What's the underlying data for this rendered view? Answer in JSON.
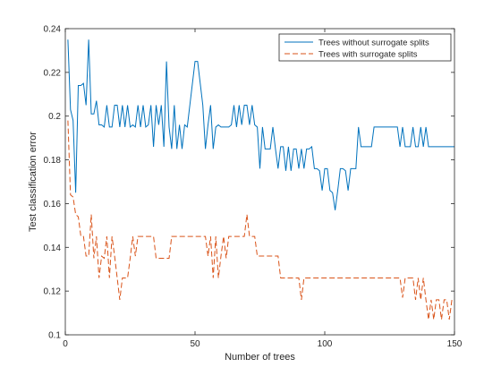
{
  "chart_data": {
    "type": "line",
    "xlabel": "Number of trees",
    "ylabel": "Test classification error",
    "xlim": [
      0,
      150
    ],
    "ylim": [
      0.1,
      0.24
    ],
    "xticks": [
      0,
      50,
      100,
      150
    ],
    "yticks": [
      0.1,
      0.12,
      0.14,
      0.16,
      0.18,
      0.2,
      0.22,
      0.24
    ],
    "ytick_labels": [
      "0.1",
      "0.12",
      "0.14",
      "0.16",
      "0.18",
      "0.2",
      "0.22",
      "0.24"
    ],
    "grid": false,
    "legend_position": "top-right",
    "series": [
      {
        "name": "Trees without surrogate splits",
        "color": "#0072BD",
        "dash": "solid",
        "points": [
          [
            1,
            0.235
          ],
          [
            2,
            0.203
          ],
          [
            3,
            0.198
          ],
          [
            4,
            0.165
          ],
          [
            5,
            0.214
          ],
          [
            6,
            0.214
          ],
          [
            7,
            0.215
          ],
          [
            8,
            0.205
          ],
          [
            9,
            0.235
          ],
          [
            10,
            0.201
          ],
          [
            11,
            0.201
          ],
          [
            12,
            0.207
          ],
          [
            13,
            0.196
          ],
          [
            14,
            0.196
          ],
          [
            15,
            0.195
          ],
          [
            16,
            0.205
          ],
          [
            17,
            0.195
          ],
          [
            18,
            0.195
          ],
          [
            19,
            0.205
          ],
          [
            20,
            0.205
          ],
          [
            21,
            0.195
          ],
          [
            22,
            0.205
          ],
          [
            23,
            0.195
          ],
          [
            24,
            0.205
          ],
          [
            25,
            0.195
          ],
          [
            26,
            0.196
          ],
          [
            27,
            0.195
          ],
          [
            28,
            0.205
          ],
          [
            29,
            0.195
          ],
          [
            30,
            0.205
          ],
          [
            31,
            0.195
          ],
          [
            32,
            0.196
          ],
          [
            33,
            0.205
          ],
          [
            34,
            0.186
          ],
          [
            35,
            0.205
          ],
          [
            36,
            0.196
          ],
          [
            37,
            0.205
          ],
          [
            38,
            0.186
          ],
          [
            39,
            0.225
          ],
          [
            40,
            0.195
          ],
          [
            41,
            0.185
          ],
          [
            42,
            0.205
          ],
          [
            43,
            0.185
          ],
          [
            44,
            0.196
          ],
          [
            45,
            0.185
          ],
          [
            46,
            0.196
          ],
          [
            47,
            0.195
          ],
          [
            48,
            0.205
          ],
          [
            49,
            0.215
          ],
          [
            50,
            0.225
          ],
          [
            51,
            0.225
          ],
          [
            52,
            0.215
          ],
          [
            53,
            0.205
          ],
          [
            54,
            0.185
          ],
          [
            55,
            0.196
          ],
          [
            56,
            0.205
          ],
          [
            57,
            0.185
          ],
          [
            58,
            0.195
          ],
          [
            59,
            0.196
          ],
          [
            60,
            0.195
          ],
          [
            61,
            0.195
          ],
          [
            62,
            0.195
          ],
          [
            63,
            0.195
          ],
          [
            64,
            0.196
          ],
          [
            65,
            0.205
          ],
          [
            66,
            0.195
          ],
          [
            67,
            0.205
          ],
          [
            68,
            0.196
          ],
          [
            69,
            0.205
          ],
          [
            70,
            0.205
          ],
          [
            71,
            0.196
          ],
          [
            72,
            0.205
          ],
          [
            73,
            0.196
          ],
          [
            74,
            0.195
          ],
          [
            75,
            0.176
          ],
          [
            76,
            0.195
          ],
          [
            77,
            0.185
          ],
          [
            78,
            0.185
          ],
          [
            79,
            0.185
          ],
          [
            80,
            0.195
          ],
          [
            81,
            0.185
          ],
          [
            82,
            0.176
          ],
          [
            83,
            0.186
          ],
          [
            84,
            0.186
          ],
          [
            85,
            0.175
          ],
          [
            86,
            0.186
          ],
          [
            87,
            0.175
          ],
          [
            88,
            0.185
          ],
          [
            89,
            0.185
          ],
          [
            90,
            0.176
          ],
          [
            91,
            0.185
          ],
          [
            92,
            0.176
          ],
          [
            93,
            0.185
          ],
          [
            94,
            0.185
          ],
          [
            95,
            0.186
          ],
          [
            96,
            0.176
          ],
          [
            97,
            0.176
          ],
          [
            98,
            0.175
          ],
          [
            99,
            0.166
          ],
          [
            100,
            0.176
          ],
          [
            101,
            0.176
          ],
          [
            102,
            0.166
          ],
          [
            103,
            0.165
          ],
          [
            104,
            0.157
          ],
          [
            105,
            0.166
          ],
          [
            106,
            0.176
          ],
          [
            107,
            0.176
          ],
          [
            108,
            0.175
          ],
          [
            109,
            0.166
          ],
          [
            110,
            0.176
          ],
          [
            111,
            0.176
          ],
          [
            112,
            0.176
          ],
          [
            113,
            0.195
          ],
          [
            114,
            0.186
          ],
          [
            115,
            0.186
          ],
          [
            116,
            0.186
          ],
          [
            117,
            0.186
          ],
          [
            118,
            0.186
          ],
          [
            119,
            0.195
          ],
          [
            120,
            0.195
          ],
          [
            121,
            0.195
          ],
          [
            122,
            0.195
          ],
          [
            123,
            0.195
          ],
          [
            124,
            0.195
          ],
          [
            125,
            0.195
          ],
          [
            126,
            0.195
          ],
          [
            127,
            0.195
          ],
          [
            128,
            0.195
          ],
          [
            129,
            0.186
          ],
          [
            130,
            0.195
          ],
          [
            131,
            0.186
          ],
          [
            132,
            0.186
          ],
          [
            133,
            0.186
          ],
          [
            134,
            0.195
          ],
          [
            135,
            0.186
          ],
          [
            136,
            0.186
          ],
          [
            137,
            0.195
          ],
          [
            138,
            0.186
          ],
          [
            139,
            0.195
          ],
          [
            140,
            0.186
          ],
          [
            141,
            0.186
          ],
          [
            142,
            0.186
          ],
          [
            143,
            0.186
          ],
          [
            144,
            0.186
          ],
          [
            145,
            0.186
          ],
          [
            146,
            0.186
          ],
          [
            147,
            0.186
          ],
          [
            148,
            0.186
          ],
          [
            149,
            0.186
          ],
          [
            150,
            0.186
          ]
        ]
      },
      {
        "name": "Trees with surrogate splits",
        "color": "#D95319",
        "dash": "dashed",
        "points": [
          [
            1,
            0.198
          ],
          [
            2,
            0.164
          ],
          [
            3,
            0.163
          ],
          [
            4,
            0.155
          ],
          [
            5,
            0.154
          ],
          [
            6,
            0.145
          ],
          [
            7,
            0.145
          ],
          [
            8,
            0.136
          ],
          [
            9,
            0.136
          ],
          [
            10,
            0.155
          ],
          [
            11,
            0.135
          ],
          [
            12,
            0.145
          ],
          [
            13,
            0.126
          ],
          [
            14,
            0.136
          ],
          [
            15,
            0.135
          ],
          [
            16,
            0.145
          ],
          [
            17,
            0.126
          ],
          [
            18,
            0.145
          ],
          [
            19,
            0.136
          ],
          [
            20,
            0.126
          ],
          [
            21,
            0.116
          ],
          [
            22,
            0.126
          ],
          [
            23,
            0.126
          ],
          [
            24,
            0.126
          ],
          [
            25,
            0.135
          ],
          [
            26,
            0.145
          ],
          [
            27,
            0.136
          ],
          [
            28,
            0.145
          ],
          [
            29,
            0.145
          ],
          [
            30,
            0.145
          ],
          [
            31,
            0.145
          ],
          [
            32,
            0.145
          ],
          [
            33,
            0.145
          ],
          [
            34,
            0.145
          ],
          [
            35,
            0.135
          ],
          [
            36,
            0.135
          ],
          [
            37,
            0.135
          ],
          [
            38,
            0.135
          ],
          [
            39,
            0.135
          ],
          [
            40,
            0.135
          ],
          [
            41,
            0.145
          ],
          [
            42,
            0.145
          ],
          [
            43,
            0.145
          ],
          [
            44,
            0.145
          ],
          [
            45,
            0.145
          ],
          [
            46,
            0.145
          ],
          [
            47,
            0.145
          ],
          [
            48,
            0.145
          ],
          [
            49,
            0.145
          ],
          [
            50,
            0.145
          ],
          [
            51,
            0.145
          ],
          [
            52,
            0.145
          ],
          [
            53,
            0.145
          ],
          [
            54,
            0.145
          ],
          [
            55,
            0.136
          ],
          [
            56,
            0.145
          ],
          [
            57,
            0.126
          ],
          [
            58,
            0.145
          ],
          [
            59,
            0.126
          ],
          [
            60,
            0.136
          ],
          [
            61,
            0.145
          ],
          [
            62,
            0.135
          ],
          [
            63,
            0.145
          ],
          [
            64,
            0.145
          ],
          [
            65,
            0.145
          ],
          [
            66,
            0.145
          ],
          [
            67,
            0.145
          ],
          [
            68,
            0.145
          ],
          [
            69,
            0.145
          ],
          [
            70,
            0.155
          ],
          [
            71,
            0.145
          ],
          [
            72,
            0.145
          ],
          [
            73,
            0.145
          ],
          [
            74,
            0.136
          ],
          [
            75,
            0.136
          ],
          [
            76,
            0.136
          ],
          [
            77,
            0.136
          ],
          [
            78,
            0.136
          ],
          [
            79,
            0.136
          ],
          [
            80,
            0.136
          ],
          [
            81,
            0.136
          ],
          [
            82,
            0.136
          ],
          [
            83,
            0.126
          ],
          [
            84,
            0.126
          ],
          [
            85,
            0.126
          ],
          [
            86,
            0.126
          ],
          [
            87,
            0.126
          ],
          [
            88,
            0.126
          ],
          [
            89,
            0.126
          ],
          [
            90,
            0.126
          ],
          [
            91,
            0.116
          ],
          [
            92,
            0.126
          ],
          [
            93,
            0.126
          ],
          [
            94,
            0.126
          ],
          [
            95,
            0.126
          ],
          [
            96,
            0.126
          ],
          [
            97,
            0.126
          ],
          [
            98,
            0.126
          ],
          [
            99,
            0.126
          ],
          [
            100,
            0.126
          ],
          [
            101,
            0.126
          ],
          [
            102,
            0.126
          ],
          [
            103,
            0.126
          ],
          [
            104,
            0.126
          ],
          [
            105,
            0.126
          ],
          [
            106,
            0.126
          ],
          [
            107,
            0.126
          ],
          [
            108,
            0.126
          ],
          [
            109,
            0.126
          ],
          [
            110,
            0.126
          ],
          [
            111,
            0.126
          ],
          [
            112,
            0.126
          ],
          [
            113,
            0.126
          ],
          [
            114,
            0.126
          ],
          [
            115,
            0.126
          ],
          [
            116,
            0.126
          ],
          [
            117,
            0.126
          ],
          [
            118,
            0.126
          ],
          [
            119,
            0.126
          ],
          [
            120,
            0.126
          ],
          [
            121,
            0.126
          ],
          [
            122,
            0.126
          ],
          [
            123,
            0.126
          ],
          [
            124,
            0.126
          ],
          [
            125,
            0.126
          ],
          [
            126,
            0.126
          ],
          [
            127,
            0.126
          ],
          [
            128,
            0.126
          ],
          [
            129,
            0.126
          ],
          [
            130,
            0.117
          ],
          [
            131,
            0.126
          ],
          [
            132,
            0.126
          ],
          [
            133,
            0.126
          ],
          [
            134,
            0.126
          ],
          [
            135,
            0.116
          ],
          [
            136,
            0.126
          ],
          [
            137,
            0.116
          ],
          [
            138,
            0.126
          ],
          [
            139,
            0.116
          ],
          [
            140,
            0.107
          ],
          [
            141,
            0.116
          ],
          [
            142,
            0.107
          ],
          [
            143,
            0.116
          ],
          [
            144,
            0.116
          ],
          [
            145,
            0.107
          ],
          [
            146,
            0.116
          ],
          [
            147,
            0.116
          ],
          [
            148,
            0.107
          ],
          [
            149,
            0.116
          ],
          [
            150,
            0.116
          ]
        ]
      }
    ]
  }
}
